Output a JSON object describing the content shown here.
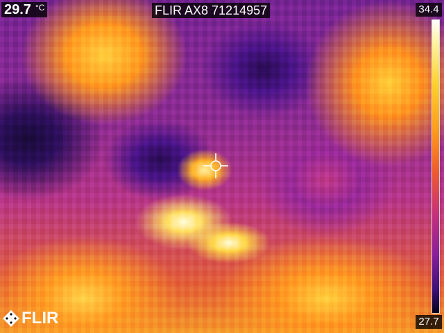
{
  "measurement": {
    "spot_temperature": "29.7",
    "unit": "°C"
  },
  "camera": {
    "model_serial": "FLIR AX8 71214957"
  },
  "scale": {
    "max": "34.4",
    "min": "27.7",
    "palette": "iron"
  },
  "brand": {
    "logo_text": "FLIR"
  },
  "overlay": {
    "spot_marker_icon": "crosshair-icon"
  }
}
